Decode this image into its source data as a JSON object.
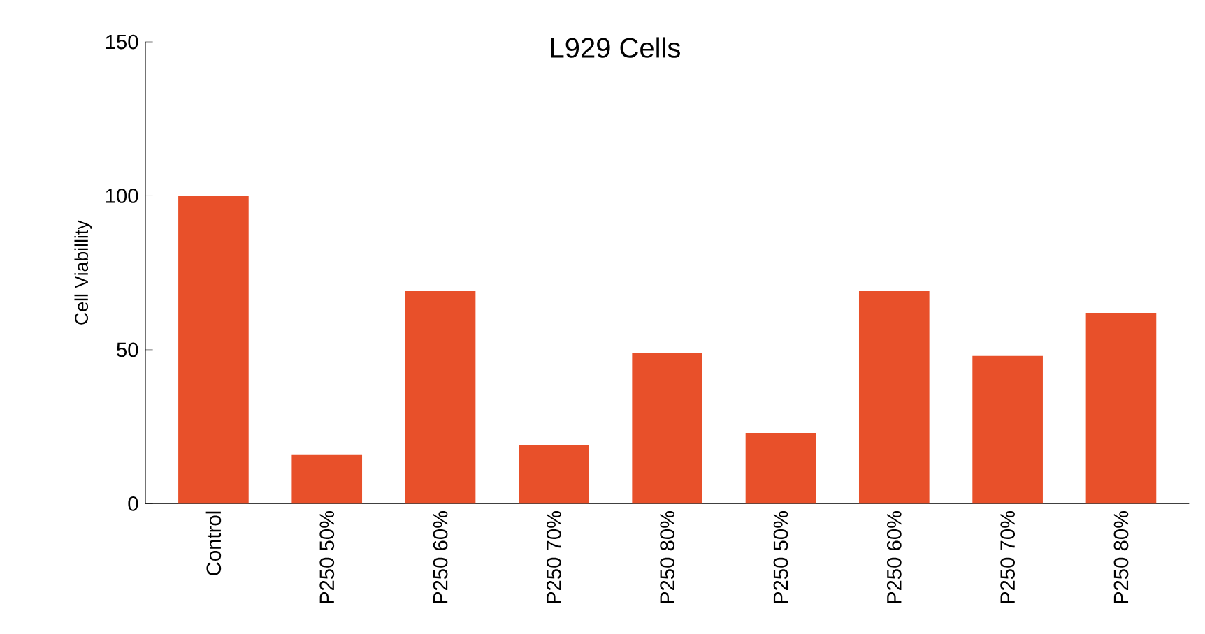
{
  "chart_data": {
    "type": "bar",
    "title": "L929 Cells",
    "ylabel": "Cell Viabillity",
    "categories": [
      "Control",
      "P250 50%",
      "P250 60%",
      "P250 70%",
      "P250 80%",
      "P250 50%",
      "P250 60%",
      "P250 70%",
      "P250 80%"
    ],
    "values": [
      100,
      16,
      69,
      19,
      49,
      23,
      69,
      48,
      62
    ],
    "color": "#e8502a",
    "ylim": [
      0,
      150
    ],
    "yticks": [
      0,
      50,
      100,
      150
    ],
    "grid": false
  }
}
